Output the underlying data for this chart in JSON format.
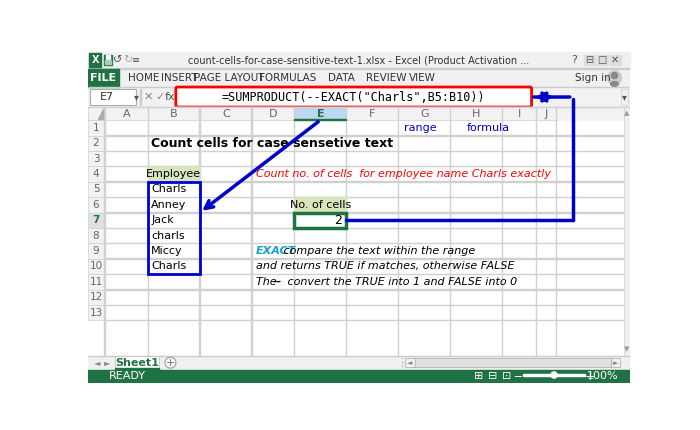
{
  "title_bar_text": "count-cells-for-case-sensitive-text-1.xlsx - Excel (Product Activation ...",
  "formula_bar_cell": "E7",
  "formula_bar_formula": "=SUMPRODUCT(--EXACT(\"Charls\",B5:B10))",
  "title_text": "Count cells for case sensetive text",
  "employee_header": "Employee",
  "employees": [
    "Charls",
    "Anney",
    "Jack",
    "charls",
    "Miccy",
    "Charls"
  ],
  "no_of_cells_label": "No. of cells",
  "no_of_cells_value": "2",
  "red_label": "Count no. of cells  for employee name Charls exactly",
  "annotation1_bold": "EXACT",
  "annotation1_rest": " compare the text within the range",
  "annotation2": "and returns TRUE if matches, otherwise FALSE",
  "annotation3_pre": "The ",
  "annotation3_bold": "--",
  "annotation3_rest": " convert the TRUE into 1 and FALSE into 0",
  "range_label": "range",
  "formula_label": "formula",
  "bg_color": "#FFFFFF",
  "file_btn_bg": "#1F7244",
  "employee_header_bg": "#D8E4BC",
  "no_of_cells_bg": "#D8E4BC",
  "cell_selected_border": "#1F7244",
  "formula_box_color": "#FF0000",
  "arrow_color": "#0000CC",
  "grid_color": "#D0D0D0",
  "status_bar_bg": "#1F7244",
  "tab_text_color": "#1F7244",
  "col_E_header_bg": "#BDD7EE",
  "col_E_header_border": "#1F7244",
  "menu_items": [
    "HOME",
    "INSERT",
    "PAGE LAYOUT",
    "FORMULAS",
    "DATA",
    "REVIEW",
    "VIEW"
  ],
  "menu_x": [
    72,
    118,
    183,
    258,
    328,
    385,
    432
  ]
}
